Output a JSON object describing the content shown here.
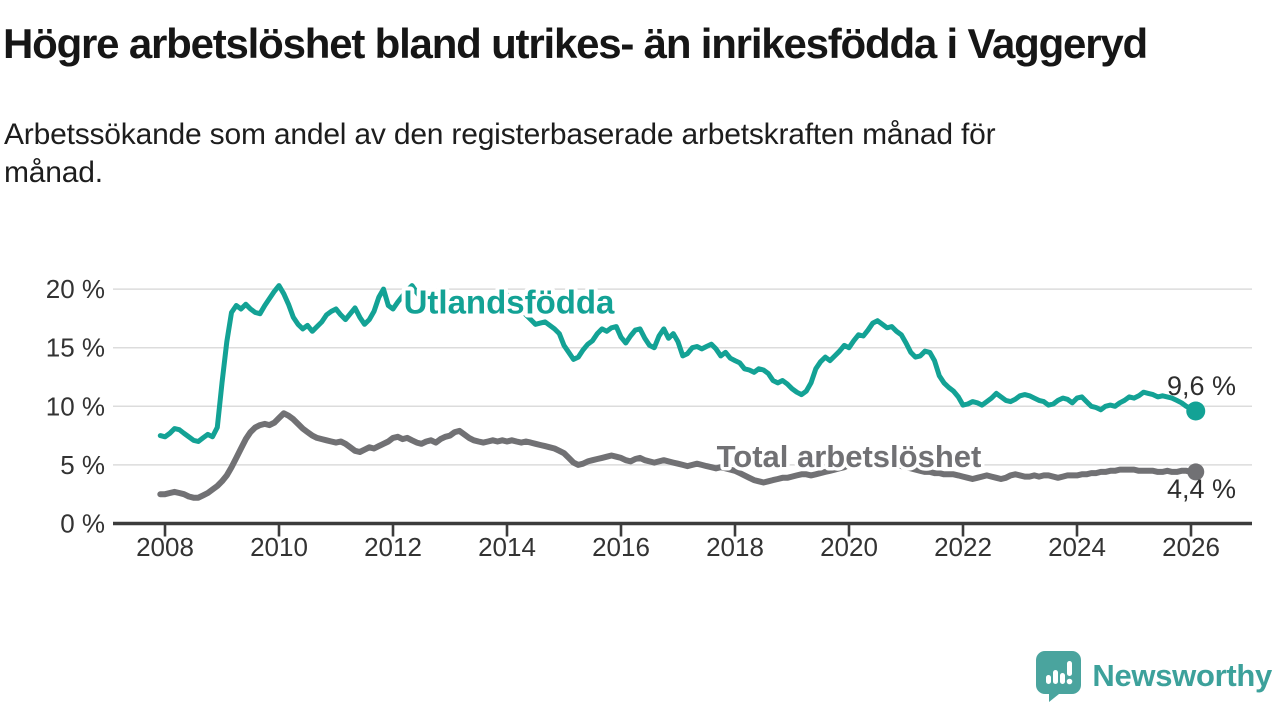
{
  "header": {
    "title": "Högre arbetslöshet bland utrikes- än inrikesfödda i Vaggeryd",
    "subtitle_lines": [
      "Arbetssökande som andel av den registerbaserade arbetskraften månad för",
      "månad."
    ]
  },
  "branding": {
    "name": "Newsworthy",
    "icon": "newsworthy-speech-bubble-chart-icon",
    "color": "#3da19b",
    "icon_color": "#4aa49e"
  },
  "colors": {
    "foreign_born_line": "#13a295",
    "total_line": "#717174",
    "axis": "#3c3c3c",
    "tick_label": "#333333",
    "gridline": "#dcdcdc",
    "value_label": "#2e2e2e",
    "background": "#ffffff"
  },
  "chart_data": {
    "type": "line",
    "unit": "%",
    "grid": "horizontal",
    "x_axis": {
      "tick_values": [
        2008,
        2010,
        2012,
        2014,
        2016,
        2018,
        2020,
        2022,
        2024,
        2026
      ],
      "tick_labels": [
        "2008",
        "2010",
        "2012",
        "2014",
        "2016",
        "2018",
        "2020",
        "2022",
        "2024",
        "2026"
      ],
      "range": [
        2007.7,
        2026.8
      ]
    },
    "y_axis": {
      "tick_values": [
        0,
        5,
        10,
        15,
        20
      ],
      "tick_labels": [
        "0 %",
        "5 %",
        "10 %",
        "15 %",
        "20 %"
      ],
      "range": [
        0,
        21.6
      ]
    },
    "series": [
      {
        "id": "utlandsfodda",
        "name": "Utlandsfödda",
        "label": "Utlandsfödda",
        "color": "#13a295",
        "stroke_width": 5,
        "start_year": 2007.9167,
        "points_per_year": 12,
        "dashed_tail_points": 4,
        "end_dot": true,
        "end_label": "9,6 %",
        "latest_value": 9.6,
        "values": [
          7.5,
          7.4,
          7.7,
          8.1,
          8.0,
          7.7,
          7.4,
          7.1,
          7.0,
          7.3,
          7.6,
          7.4,
          8.2,
          12.0,
          15.5,
          18.0,
          18.6,
          18.3,
          18.7,
          18.3,
          18.0,
          17.9,
          18.6,
          19.2,
          19.8,
          20.3,
          19.6,
          18.7,
          17.6,
          17.0,
          16.6,
          16.9,
          16.4,
          16.8,
          17.2,
          17.8,
          18.1,
          18.3,
          17.8,
          17.4,
          17.9,
          18.4,
          17.6,
          17.0,
          17.4,
          18.1,
          19.3,
          20.0,
          18.6,
          18.3,
          18.9,
          19.4,
          19.9,
          20.3,
          19.7,
          19.2,
          18.8,
          19.1,
          19.5,
          18.9,
          18.6,
          18.8,
          19.2,
          18.9,
          18.5,
          18.2,
          18.5,
          18.9,
          18.6,
          18.9,
          19.3,
          19.6,
          19.8,
          19.5,
          19.0,
          18.6,
          18.2,
          17.8,
          17.4,
          17.0,
          17.1,
          17.2,
          16.9,
          16.6,
          16.2,
          15.2,
          14.6,
          14.0,
          14.2,
          14.8,
          15.3,
          15.6,
          16.2,
          16.6,
          16.4,
          16.7,
          16.8,
          15.9,
          15.4,
          16.0,
          16.5,
          16.6,
          15.8,
          15.2,
          15.0,
          16.0,
          16.6,
          15.8,
          16.2,
          15.5,
          14.3,
          14.5,
          15.0,
          15.1,
          14.9,
          15.1,
          15.3,
          14.9,
          14.3,
          14.6,
          14.1,
          13.9,
          13.7,
          13.2,
          13.1,
          12.9,
          13.2,
          13.1,
          12.8,
          12.2,
          12.0,
          12.2,
          11.9,
          11.5,
          11.2,
          11.0,
          11.3,
          12.0,
          13.2,
          13.8,
          14.2,
          13.9,
          14.3,
          14.7,
          15.2,
          15.0,
          15.6,
          16.1,
          16.0,
          16.5,
          17.1,
          17.3,
          17.0,
          16.7,
          16.8,
          16.4,
          16.1,
          15.4,
          14.6,
          14.2,
          14.3,
          14.7,
          14.6,
          13.9,
          12.6,
          12.0,
          11.6,
          11.3,
          10.8,
          10.1,
          10.2,
          10.4,
          10.3,
          10.1,
          10.4,
          10.7,
          11.1,
          10.8,
          10.5,
          10.4,
          10.6,
          10.9,
          11.0,
          10.9,
          10.7,
          10.5,
          10.4,
          10.1,
          10.2,
          10.5,
          10.7,
          10.6,
          10.3,
          10.7,
          10.8,
          10.4,
          10.0,
          9.9,
          9.7,
          10.0,
          10.1,
          10.0,
          10.3,
          10.5,
          10.8,
          10.7,
          10.9,
          11.2,
          11.1,
          11.0,
          10.8,
          10.9,
          10.8,
          10.7,
          10.5,
          10.3,
          10.0,
          9.8,
          9.6
        ]
      },
      {
        "id": "total-arbetsloshet",
        "name": "Total arbetslöshet",
        "label": "Total arbetslöshet",
        "color": "#717174",
        "stroke_width": 6,
        "start_year": 2007.9167,
        "points_per_year": 12,
        "dashed_tail_points": 0,
        "end_dot": true,
        "end_label": "4,4 %",
        "latest_value": 4.4,
        "values": [
          2.5,
          2.5,
          2.6,
          2.7,
          2.6,
          2.5,
          2.3,
          2.2,
          2.2,
          2.4,
          2.6,
          2.9,
          3.2,
          3.6,
          4.1,
          4.8,
          5.6,
          6.4,
          7.2,
          7.8,
          8.2,
          8.4,
          8.5,
          8.4,
          8.6,
          9.0,
          9.4,
          9.2,
          8.9,
          8.5,
          8.1,
          7.8,
          7.5,
          7.3,
          7.2,
          7.1,
          7.0,
          6.9,
          7.0,
          6.8,
          6.5,
          6.2,
          6.1,
          6.3,
          6.5,
          6.4,
          6.6,
          6.8,
          7.0,
          7.3,
          7.4,
          7.2,
          7.3,
          7.1,
          6.9,
          6.8,
          7.0,
          7.1,
          6.9,
          7.2,
          7.4,
          7.5,
          7.8,
          7.9,
          7.6,
          7.3,
          7.1,
          7.0,
          6.9,
          7.0,
          7.1,
          7.0,
          7.1,
          7.0,
          7.1,
          7.0,
          6.9,
          7.0,
          6.9,
          6.8,
          6.7,
          6.6,
          6.5,
          6.4,
          6.2,
          6.0,
          5.6,
          5.2,
          5.0,
          5.1,
          5.3,
          5.4,
          5.5,
          5.6,
          5.7,
          5.8,
          5.7,
          5.6,
          5.4,
          5.3,
          5.5,
          5.6,
          5.4,
          5.3,
          5.2,
          5.3,
          5.4,
          5.3,
          5.2,
          5.1,
          5.0,
          4.9,
          5.0,
          5.1,
          5.0,
          4.9,
          4.8,
          4.7,
          4.8,
          4.7,
          4.6,
          4.5,
          4.3,
          4.1,
          3.9,
          3.7,
          3.6,
          3.5,
          3.6,
          3.7,
          3.8,
          3.9,
          3.9,
          4.0,
          4.1,
          4.2,
          4.2,
          4.1,
          4.2,
          4.3,
          4.4,
          4.5,
          4.6,
          4.7,
          4.8,
          5.0,
          5.1,
          5.3,
          5.5,
          5.6,
          5.5,
          5.4,
          5.3,
          5.2,
          5.1,
          5.0,
          4.9,
          4.8,
          4.7,
          4.6,
          4.5,
          4.4,
          4.4,
          4.3,
          4.3,
          4.2,
          4.2,
          4.2,
          4.1,
          4.0,
          3.9,
          3.8,
          3.9,
          4.0,
          4.1,
          4.0,
          3.9,
          3.8,
          3.9,
          4.1,
          4.2,
          4.1,
          4.0,
          4.0,
          4.1,
          4.0,
          4.1,
          4.1,
          4.0,
          3.9,
          4.0,
          4.1,
          4.1,
          4.1,
          4.2,
          4.2,
          4.3,
          4.3,
          4.4,
          4.4,
          4.5,
          4.5,
          4.6,
          4.6,
          4.6,
          4.6,
          4.5,
          4.5,
          4.5,
          4.5,
          4.4,
          4.4,
          4.5,
          4.4,
          4.4,
          4.5,
          4.5,
          4.4,
          4.4
        ]
      }
    ]
  }
}
